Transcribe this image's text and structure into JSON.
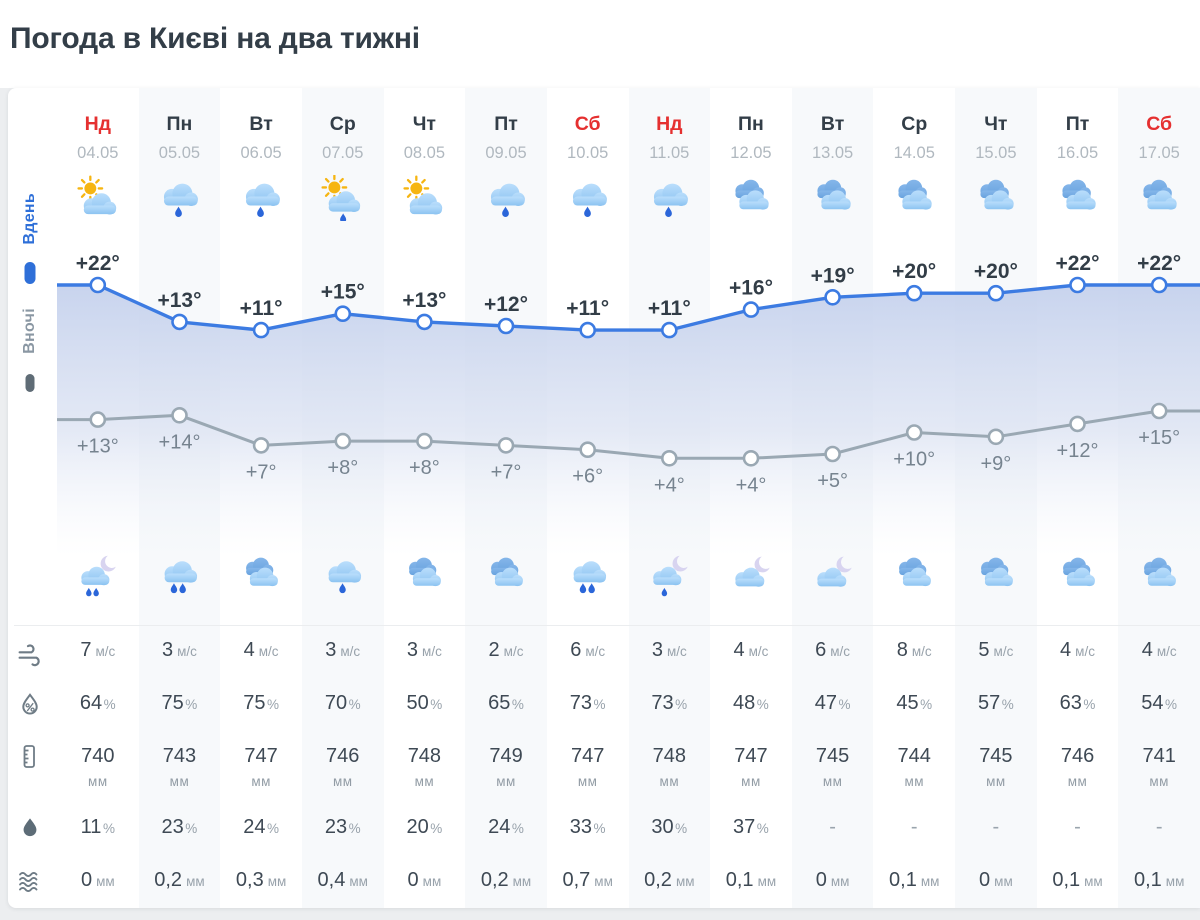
{
  "page": {
    "title": "Погода в Києві на два тижні"
  },
  "legend": {
    "day": "Вдень",
    "night": "Вночі"
  },
  "colors": {
    "weekend_red": "#e53030",
    "day_line_blue": "#3c7be2",
    "night_line_gray": "#9aa8b3",
    "rain_drop_blue": "#2b66d9",
    "legend_day_blue": "#2e6fd8"
  },
  "stats": {
    "wind": {
      "icon": "wind-icon",
      "unit": "м/с"
    },
    "humidity": {
      "icon": "humidity-icon",
      "unit": "%"
    },
    "pressure": {
      "icon": "pressure-icon",
      "unit": "мм"
    },
    "pop": {
      "icon": "precip-probability-icon",
      "unit": "%"
    },
    "precip": {
      "icon": "precip-amount-icon",
      "unit": "мм"
    }
  },
  "days": [
    {
      "name": "Нд",
      "weekend": true,
      "date": "04.05",
      "day_icon": "sun-cloud",
      "day_temp": "+22°",
      "night_temp": "+13°",
      "night_icon": "moon-cloud-rain2",
      "wind": "7",
      "humidity": "64",
      "pressure": "740",
      "pop": "11",
      "precip": "0"
    },
    {
      "name": "Пн",
      "weekend": false,
      "date": "05.05",
      "day_icon": "cloud-rain",
      "day_temp": "+13°",
      "night_temp": "+14°",
      "night_icon": "cloud-rain2",
      "wind": "3",
      "humidity": "75",
      "pressure": "743",
      "pop": "23",
      "precip": "0,2"
    },
    {
      "name": "Вт",
      "weekend": false,
      "date": "06.05",
      "day_icon": "cloud-rain",
      "day_temp": "+11°",
      "night_temp": "+7°",
      "night_icon": "clouds",
      "wind": "4",
      "humidity": "75",
      "pressure": "747",
      "pop": "24",
      "precip": "0,3"
    },
    {
      "name": "Ср",
      "weekend": false,
      "date": "07.05",
      "day_icon": "sun-cloud-rain",
      "day_temp": "+15°",
      "night_temp": "+8°",
      "night_icon": "cloud-rain",
      "wind": "3",
      "humidity": "70",
      "pressure": "746",
      "pop": "23",
      "precip": "0,4"
    },
    {
      "name": "Чт",
      "weekend": false,
      "date": "08.05",
      "day_icon": "sun-cloud",
      "day_temp": "+13°",
      "night_temp": "+8°",
      "night_icon": "clouds",
      "wind": "3",
      "humidity": "50",
      "pressure": "748",
      "pop": "20",
      "precip": "0"
    },
    {
      "name": "Пт",
      "weekend": false,
      "date": "09.05",
      "day_icon": "cloud-rain",
      "day_temp": "+12°",
      "night_temp": "+7°",
      "night_icon": "clouds",
      "wind": "2",
      "humidity": "65",
      "pressure": "749",
      "pop": "24",
      "precip": "0,2"
    },
    {
      "name": "Сб",
      "weekend": true,
      "date": "10.05",
      "day_icon": "cloud-rain",
      "day_temp": "+11°",
      "night_temp": "+6°",
      "night_icon": "cloud-rain2",
      "wind": "6",
      "humidity": "73",
      "pressure": "747",
      "pop": "33",
      "precip": "0,7"
    },
    {
      "name": "Нд",
      "weekend": true,
      "date": "11.05",
      "day_icon": "cloud-rain",
      "day_temp": "+11°",
      "night_temp": "+4°",
      "night_icon": "moon-cloud-rain",
      "wind": "3",
      "humidity": "73",
      "pressure": "748",
      "pop": "30",
      "precip": "0,2"
    },
    {
      "name": "Пн",
      "weekend": false,
      "date": "12.05",
      "day_icon": "clouds",
      "day_temp": "+16°",
      "night_temp": "+4°",
      "night_icon": "moon-cloud",
      "wind": "4",
      "humidity": "48",
      "pressure": "747",
      "pop": "37",
      "precip": "0,1"
    },
    {
      "name": "Вт",
      "weekend": false,
      "date": "13.05",
      "day_icon": "clouds",
      "day_temp": "+19°",
      "night_temp": "+5°",
      "night_icon": "moon-cloud",
      "wind": "6",
      "humidity": "47",
      "pressure": "745",
      "pop": "-",
      "precip": "0"
    },
    {
      "name": "Ср",
      "weekend": false,
      "date": "14.05",
      "day_icon": "clouds",
      "day_temp": "+20°",
      "night_temp": "+10°",
      "night_icon": "clouds",
      "wind": "8",
      "humidity": "45",
      "pressure": "744",
      "pop": "-",
      "precip": "0,1"
    },
    {
      "name": "Чт",
      "weekend": false,
      "date": "15.05",
      "day_icon": "clouds",
      "day_temp": "+20°",
      "night_temp": "+9°",
      "night_icon": "clouds",
      "wind": "5",
      "humidity": "57",
      "pressure": "745",
      "pop": "-",
      "precip": "0"
    },
    {
      "name": "Пт",
      "weekend": false,
      "date": "16.05",
      "day_icon": "clouds",
      "day_temp": "+22°",
      "night_temp": "+12°",
      "night_icon": "clouds",
      "wind": "4",
      "humidity": "63",
      "pressure": "746",
      "pop": "-",
      "precip": "0,1"
    },
    {
      "name": "Сб",
      "weekend": true,
      "date": "17.05",
      "day_icon": "clouds",
      "day_temp": "+22°",
      "night_temp": "+15°",
      "night_icon": "clouds",
      "wind": "4",
      "humidity": "54",
      "pressure": "741",
      "pop": "-",
      "precip": "0,1"
    }
  ],
  "chart_data": {
    "type": "line",
    "x": [
      "04.05",
      "05.05",
      "06.05",
      "07.05",
      "08.05",
      "09.05",
      "10.05",
      "11.05",
      "12.05",
      "13.05",
      "14.05",
      "15.05",
      "16.05",
      "17.05"
    ],
    "series": [
      {
        "name": "Вдень",
        "values": [
          22,
          13,
          11,
          15,
          13,
          12,
          11,
          11,
          16,
          19,
          20,
          20,
          22,
          22
        ],
        "color": "#3c7be2",
        "area_fill": true
      },
      {
        "name": "Вночі",
        "values": [
          13,
          14,
          7,
          8,
          8,
          7,
          6,
          4,
          4,
          5,
          10,
          9,
          12,
          15
        ],
        "color": "#9aa8b3",
        "area_fill": false
      }
    ],
    "unit": "°C",
    "legend_position": "left",
    "grid": false
  }
}
